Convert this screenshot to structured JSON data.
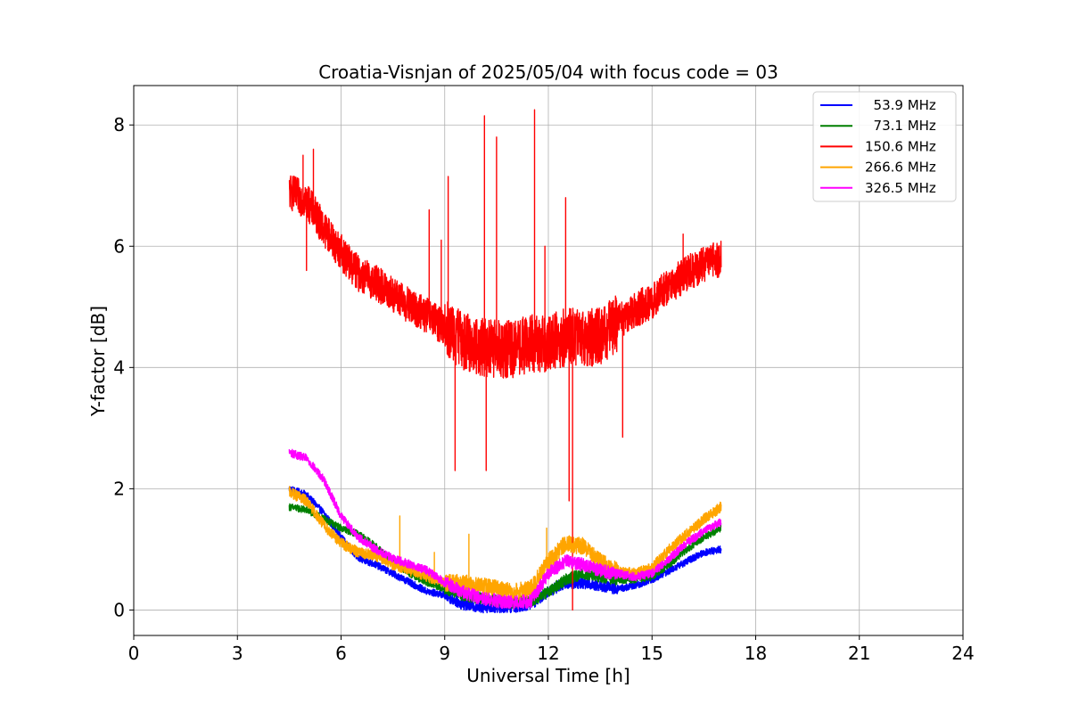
{
  "chart_data": {
    "type": "line",
    "title": "Croatia-Visnjan of 2025/05/04 with focus code = 03",
    "xlabel": "Universal Time [h]",
    "ylabel": "Y-factor [dB]",
    "xlim": [
      0,
      24
    ],
    "ylim": [
      -0.42,
      8.65
    ],
    "xticks": [
      "0",
      "3",
      "6",
      "9",
      "12",
      "15",
      "18",
      "21",
      "24"
    ],
    "yticks": [
      "0",
      "2",
      "4",
      "6",
      "8"
    ],
    "grid": true,
    "legend_position": "top-right",
    "series": [
      {
        "name": "  53.9 MHz",
        "color": "#0000ff",
        "noise": 0.06,
        "points": [
          [
            4.5,
            2.0
          ],
          [
            5.0,
            1.9
          ],
          [
            5.5,
            1.6
          ],
          [
            6.0,
            1.2
          ],
          [
            6.5,
            0.85
          ],
          [
            7.0,
            0.75
          ],
          [
            7.5,
            0.6
          ],
          [
            8.0,
            0.45
          ],
          [
            8.5,
            0.3
          ],
          [
            9.0,
            0.25
          ],
          [
            9.5,
            0.1
          ],
          [
            10.0,
            0.05
          ],
          [
            10.5,
            0.05
          ],
          [
            11.0,
            0.05
          ],
          [
            11.5,
            0.1
          ],
          [
            12.0,
            0.3
          ],
          [
            12.5,
            0.45
          ],
          [
            13.0,
            0.45
          ],
          [
            13.5,
            0.4
          ],
          [
            14.0,
            0.35
          ],
          [
            14.5,
            0.4
          ],
          [
            15.0,
            0.5
          ],
          [
            15.5,
            0.65
          ],
          [
            16.0,
            0.8
          ],
          [
            16.5,
            0.95
          ],
          [
            17.0,
            1.0
          ]
        ]
      },
      {
        "name": "  73.1 MHz",
        "color": "#008000",
        "noise": 0.06,
        "points": [
          [
            4.5,
            1.7
          ],
          [
            5.0,
            1.65
          ],
          [
            5.5,
            1.5
          ],
          [
            6.0,
            1.35
          ],
          [
            6.5,
            1.25
          ],
          [
            7.0,
            1.05
          ],
          [
            7.5,
            0.8
          ],
          [
            8.0,
            0.6
          ],
          [
            8.5,
            0.45
          ],
          [
            9.0,
            0.35
          ],
          [
            9.5,
            0.25
          ],
          [
            10.0,
            0.2
          ],
          [
            10.5,
            0.15
          ],
          [
            11.0,
            0.12
          ],
          [
            11.5,
            0.15
          ],
          [
            12.0,
            0.3
          ],
          [
            12.5,
            0.5
          ],
          [
            13.0,
            0.6
          ],
          [
            13.5,
            0.55
          ],
          [
            14.0,
            0.5
          ],
          [
            14.5,
            0.5
          ],
          [
            15.0,
            0.55
          ],
          [
            15.5,
            0.75
          ],
          [
            16.0,
            1.0
          ],
          [
            16.5,
            1.2
          ],
          [
            17.0,
            1.35
          ]
        ]
      },
      {
        "name": "150.6 MHz",
        "color": "#ff0000",
        "noise": 0.3,
        "points": [
          [
            4.5,
            6.9
          ],
          [
            5.0,
            6.75
          ],
          [
            5.5,
            6.3
          ],
          [
            6.0,
            5.9
          ],
          [
            6.5,
            5.55
          ],
          [
            7.0,
            5.4
          ],
          [
            7.5,
            5.2
          ],
          [
            8.0,
            5.0
          ],
          [
            8.5,
            4.85
          ],
          [
            9.0,
            4.65
          ],
          [
            9.5,
            4.45
          ],
          [
            10.0,
            4.35
          ],
          [
            10.5,
            4.3
          ],
          [
            11.0,
            4.3
          ],
          [
            11.5,
            4.4
          ],
          [
            12.0,
            4.4
          ],
          [
            12.5,
            4.5
          ],
          [
            13.0,
            4.5
          ],
          [
            13.5,
            4.5
          ],
          [
            14.0,
            4.75
          ],
          [
            14.5,
            4.95
          ],
          [
            15.0,
            5.1
          ],
          [
            15.5,
            5.35
          ],
          [
            16.0,
            5.55
          ],
          [
            16.5,
            5.7
          ],
          [
            17.0,
            5.8
          ]
        ],
        "spikes": [
          [
            4.9,
            7.5
          ],
          [
            5.2,
            7.6
          ],
          [
            5.0,
            5.6
          ],
          [
            8.55,
            6.6
          ],
          [
            8.9,
            6.1
          ],
          [
            9.1,
            7.15
          ],
          [
            9.3,
            2.3
          ],
          [
            10.15,
            8.15
          ],
          [
            10.2,
            2.3
          ],
          [
            10.5,
            7.8
          ],
          [
            11.6,
            8.25
          ],
          [
            11.9,
            6.0
          ],
          [
            12.5,
            6.8
          ],
          [
            12.6,
            1.8
          ],
          [
            12.7,
            0.0
          ],
          [
            14.15,
            2.85
          ],
          [
            15.9,
            6.2
          ]
        ]
      },
      {
        "name": "266.6 MHz",
        "color": "#ffa500",
        "noise": 0.09,
        "points": [
          [
            4.5,
            1.95
          ],
          [
            5.0,
            1.8
          ],
          [
            5.5,
            1.4
          ],
          [
            6.0,
            1.1
          ],
          [
            6.5,
            0.95
          ],
          [
            7.0,
            0.9
          ],
          [
            7.5,
            0.75
          ],
          [
            8.0,
            0.65
          ],
          [
            8.5,
            0.55
          ],
          [
            9.0,
            0.45
          ],
          [
            9.5,
            0.45
          ],
          [
            10.0,
            0.4
          ],
          [
            10.5,
            0.35
          ],
          [
            11.0,
            0.3
          ],
          [
            11.5,
            0.35
          ],
          [
            12.0,
            0.8
          ],
          [
            12.5,
            1.1
          ],
          [
            13.0,
            1.05
          ],
          [
            13.5,
            0.8
          ],
          [
            14.0,
            0.65
          ],
          [
            14.5,
            0.6
          ],
          [
            15.0,
            0.7
          ],
          [
            15.5,
            1.0
          ],
          [
            16.0,
            1.25
          ],
          [
            16.5,
            1.5
          ],
          [
            17.0,
            1.7
          ]
        ],
        "spikes": [
          [
            7.7,
            1.55
          ],
          [
            8.7,
            0.95
          ],
          [
            9.7,
            1.25
          ],
          [
            11.95,
            1.35
          ]
        ]
      },
      {
        "name": "326.5 MHz",
        "color": "#ff00ff",
        "noise": 0.07,
        "points": [
          [
            4.5,
            2.6
          ],
          [
            5.0,
            2.5
          ],
          [
            5.5,
            2.15
          ],
          [
            6.0,
            1.55
          ],
          [
            6.5,
            1.2
          ],
          [
            7.0,
            1.0
          ],
          [
            7.5,
            0.85
          ],
          [
            8.0,
            0.75
          ],
          [
            8.5,
            0.65
          ],
          [
            9.0,
            0.45
          ],
          [
            9.5,
            0.3
          ],
          [
            10.0,
            0.2
          ],
          [
            10.5,
            0.15
          ],
          [
            11.0,
            0.12
          ],
          [
            11.5,
            0.15
          ],
          [
            12.0,
            0.6
          ],
          [
            12.5,
            0.8
          ],
          [
            13.0,
            0.75
          ],
          [
            13.5,
            0.65
          ],
          [
            14.0,
            0.6
          ],
          [
            14.5,
            0.55
          ],
          [
            15.0,
            0.6
          ],
          [
            15.5,
            0.85
          ],
          [
            16.0,
            1.1
          ],
          [
            16.5,
            1.3
          ],
          [
            17.0,
            1.45
          ]
        ]
      }
    ]
  }
}
